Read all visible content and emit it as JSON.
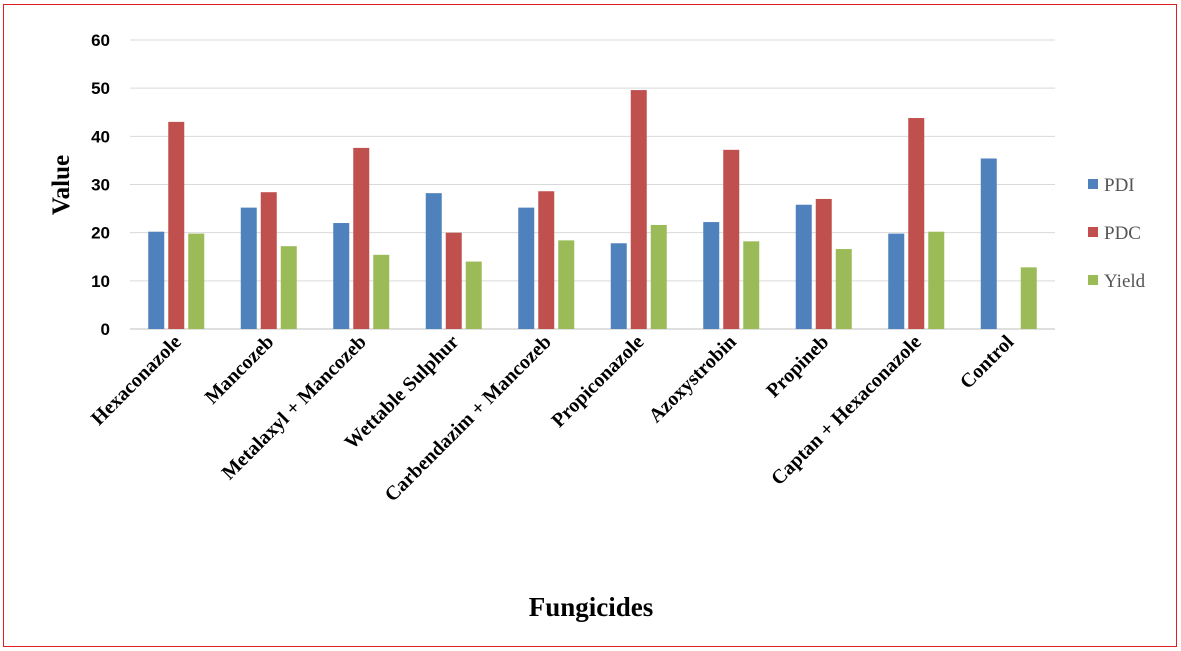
{
  "chart_data": {
    "type": "bar",
    "xlabel": "Fungicides",
    "ylabel": "Value",
    "ylim": [
      0,
      60
    ],
    "yticks": [
      0,
      10,
      20,
      30,
      40,
      50,
      60
    ],
    "grid": true,
    "legend_position": "right",
    "categories": [
      "Hexaconazole",
      "Mancozeb",
      "Metalaxyl  + Mancozeb",
      "Wettable Sulphur",
      "Carbendazim + Mancozeb",
      "Propiconazole",
      "Azoxystrobin",
      "Propineb",
      "Captan + Hexaconazole",
      "Control"
    ],
    "series": [
      {
        "name": "PDI",
        "color": "#4f81bd",
        "values": [
          20.2,
          25.2,
          22.0,
          28.2,
          25.2,
          17.8,
          22.2,
          25.8,
          19.8,
          35.4
        ]
      },
      {
        "name": "PDC",
        "color": "#c0504d",
        "values": [
          43.0,
          28.4,
          37.6,
          20.0,
          28.6,
          49.6,
          37.2,
          27.0,
          43.8,
          0
        ]
      },
      {
        "name": "Yield",
        "color": "#9bbb59",
        "values": [
          19.8,
          17.2,
          15.4,
          14.0,
          18.4,
          21.6,
          18.2,
          16.6,
          20.2,
          12.8
        ]
      }
    ]
  }
}
